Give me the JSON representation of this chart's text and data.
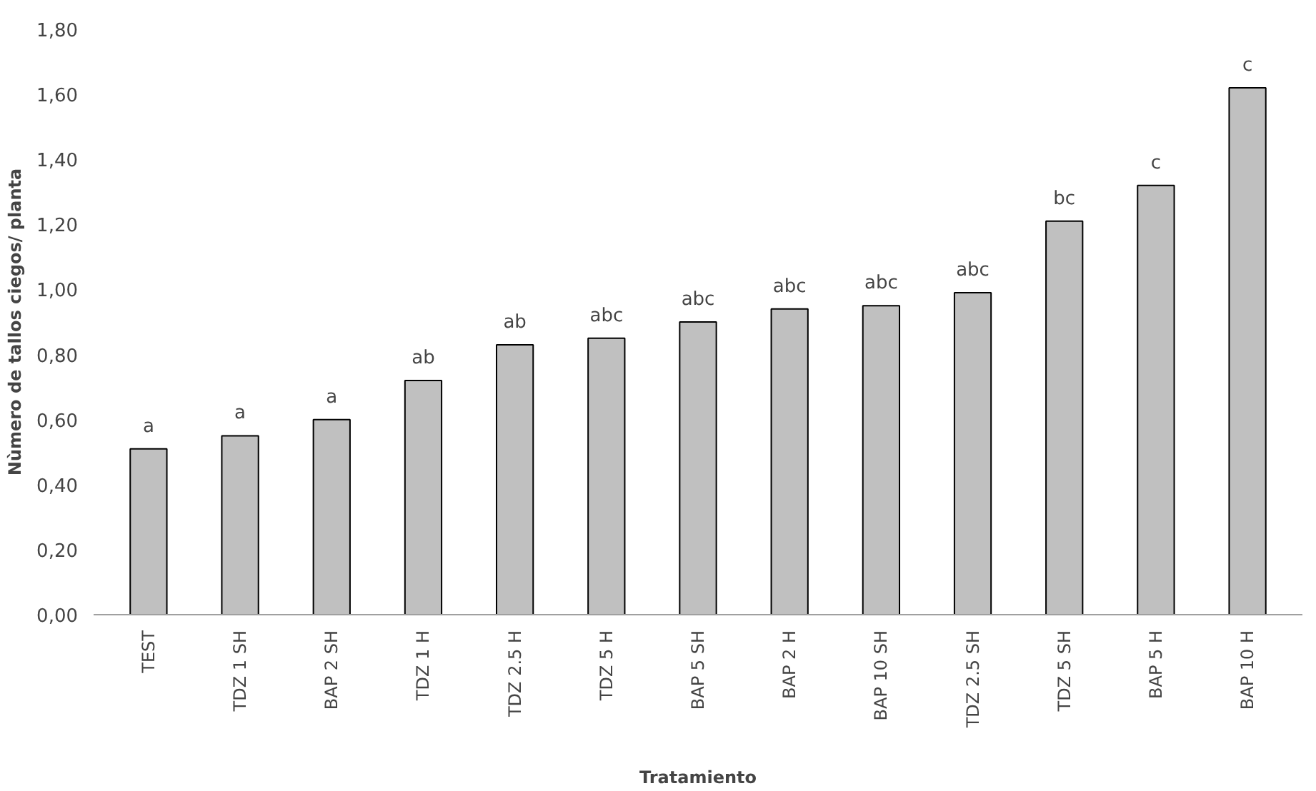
{
  "chart_data": {
    "type": "bar",
    "xlabel": "Tratamiento",
    "ylabel": "Nùmero de tallos ciegos/ planta",
    "categories": [
      "TEST",
      "TDZ 1 SH",
      "BAP 2 SH",
      "TDZ 1 H",
      "TDZ 2.5 H",
      "TDZ 5 H",
      "BAP 5 SH",
      "BAP 2 H",
      "BAP 10 SH",
      "TDZ 2.5 SH",
      "TDZ 5 SH",
      "BAP 5 H",
      "BAP 10 H"
    ],
    "values": [
      0.51,
      0.55,
      0.6,
      0.72,
      0.83,
      0.85,
      0.9,
      0.94,
      0.95,
      0.99,
      1.21,
      1.32,
      1.62
    ],
    "color": "#c0c0c0",
    "ylim": [
      0,
      1.8
    ],
    "yticks": [
      {
        "value": 0,
        "label": "0,00"
      },
      {
        "value": 0.2,
        "label": "0,20"
      },
      {
        "value": 0.4,
        "label": "0,40"
      },
      {
        "value": 0.6,
        "label": "0,60"
      },
      {
        "value": 0.8,
        "label": "0,80"
      },
      {
        "value": 1.0,
        "label": "1,00"
      },
      {
        "value": 1.2,
        "label": "1,20"
      },
      {
        "value": 1.4,
        "label": "1,40"
      },
      {
        "value": 1.6,
        "label": "1,60"
      },
      {
        "value": 1.8,
        "label": "1,80"
      }
    ],
    "grid": false,
    "annotations": [
      {
        "text": "a",
        "x": "TEST",
        "y": 0.51
      },
      {
        "text": "a",
        "x": "TDZ 1 SH",
        "y": 0.55
      },
      {
        "text": "a",
        "x": "BAP 2 SH",
        "y": 0.6
      },
      {
        "text": "ab",
        "x": "TDZ 1 H",
        "y": 0.72
      },
      {
        "text": "ab",
        "x": "TDZ 2.5 H",
        "y": 0.83
      },
      {
        "text": "abc",
        "x": "TDZ 5 H",
        "y": 0.85
      },
      {
        "text": "abc",
        "x": "BAP 5 SH",
        "y": 0.9
      },
      {
        "text": "abc",
        "x": "BAP 2 H",
        "y": 0.94
      },
      {
        "text": "abc",
        "x": "BAP 10 SH",
        "y": 0.95
      },
      {
        "text": "abc",
        "x": "TDZ 2.5 SH",
        "y": 0.99
      },
      {
        "text": "bc",
        "x": "TDZ 5 SH",
        "y": 1.21
      },
      {
        "text": "c",
        "x": "BAP 5 H",
        "y": 1.32
      },
      {
        "text": "c",
        "x": "BAP 10 H",
        "y": 1.62
      }
    ]
  }
}
